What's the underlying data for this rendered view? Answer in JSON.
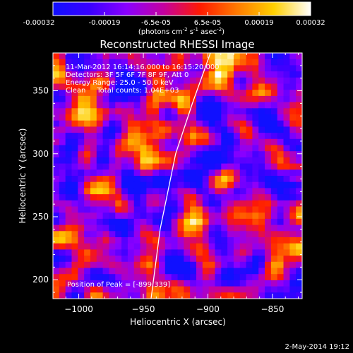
{
  "colorbar": {
    "ticks": [
      "-0.00032",
      "-0.00019",
      "-6.5e-05",
      "6.5e-05",
      "0.00019",
      "0.00032"
    ],
    "unit_prefix": "(photons cm",
    "unit_exp1": "-2",
    "unit_mid": " s",
    "unit_exp2": "-1",
    "unit_mid2": " asec",
    "unit_exp3": "-2",
    "unit_suffix": ")",
    "colors": [
      "#1010ff",
      "#3a00ff",
      "#8a00ff",
      "#c400a0",
      "#ff1a00",
      "#ff7a00",
      "#ffd000",
      "#ffffff"
    ]
  },
  "plot": {
    "title": "Reconstructed RHESSI Image",
    "xlabel": "Heliocentric X (arcsec)",
    "ylabel": "Heliocentric Y (arcsec)",
    "info_lines": [
      "11-Mar-2012 16:14:16.000 to 16:15:20.000",
      "Detectors: 3F 5F 6F 7F 8F 9F, Att 0",
      "Energy Range: 25.0 - 50.0 keV",
      "Clean     Total counts: 1.04E+03"
    ],
    "peak_label": "Position of Peak = [-899,339]",
    "footer_date": "2-May-2014 19:12"
  },
  "chart_data": {
    "type": "heatmap",
    "title": "Reconstructed RHESSI Image",
    "xlabel": "Heliocentric X (arcsec)",
    "ylabel": "Heliocentric Y (arcsec)",
    "xlim": [
      -1020,
      -827
    ],
    "ylim": [
      185,
      380
    ],
    "xticks": [
      -1000,
      -950,
      -900,
      -850
    ],
    "yticks": [
      200,
      250,
      300,
      350
    ],
    "xtick_labels": [
      "−1000",
      "−950",
      "−900",
      "−850"
    ],
    "ytick_labels": [
      "200",
      "250",
      "300",
      "350"
    ],
    "colorbar_range": [
      -0.00032,
      0.00032
    ],
    "colormap": "blue-purple-red-yellow-white",
    "peak_position": [
      -899,
      339
    ],
    "limb_points": [
      [
        -944,
        185
      ],
      [
        -937,
        240
      ],
      [
        -925,
        300
      ],
      [
        -912,
        340
      ],
      [
        -898,
        380
      ]
    ]
  }
}
